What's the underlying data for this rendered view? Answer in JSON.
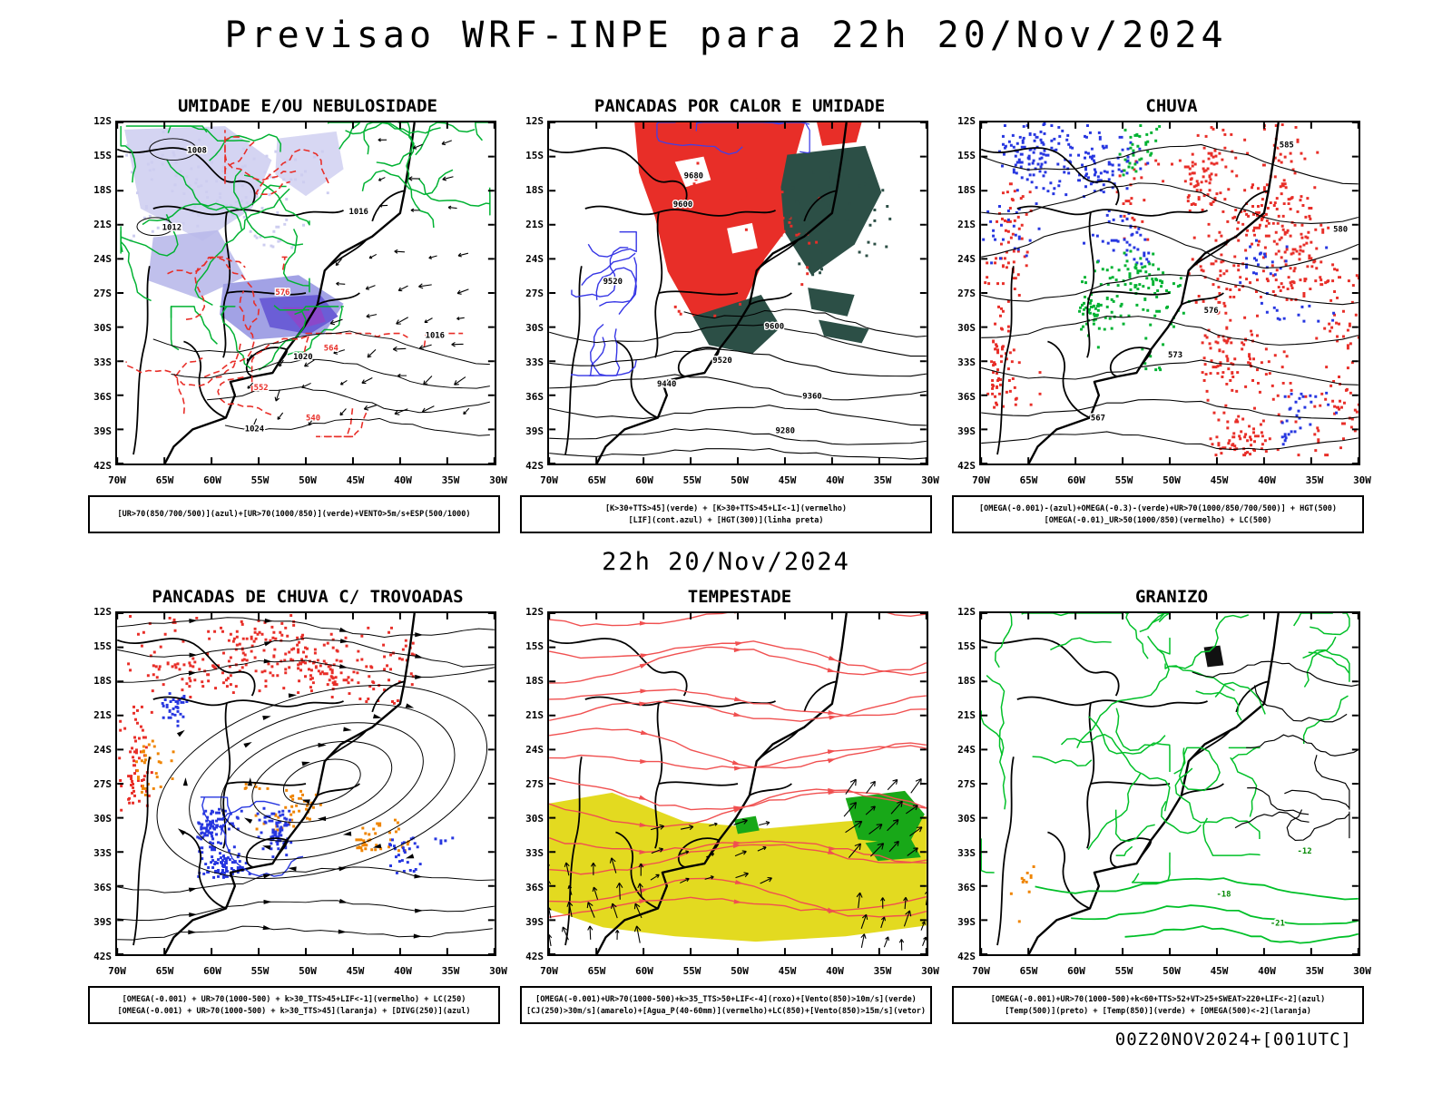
{
  "header": {
    "title": "Previsao WRF-INPE  para 22h 20/Nov/2024"
  },
  "time_label": "22h 20/Nov/2024",
  "footer_label": "00Z20NOV2024+[001UTC]",
  "axes": {
    "lat_ticks": [
      "12S",
      "15S",
      "18S",
      "21S",
      "24S",
      "27S",
      "30S",
      "33S",
      "36S",
      "39S",
      "42S"
    ],
    "lon_ticks": [
      "70W",
      "65W",
      "60W",
      "55W",
      "50W",
      "45W",
      "40W",
      "35W",
      "30W"
    ]
  },
  "colors": {
    "red": "#e82e28",
    "blue": "#2636e0",
    "green": "#00b232",
    "dark_green": "#2c4f46",
    "yellow": "#e3da20",
    "orange": "#ef8400",
    "lavender_light": "#cdcdf0",
    "lavender": "#9d9de4",
    "violet": "#6b5ed6",
    "purple": "#8f46c8",
    "stream_red": "#f05050",
    "contour_green": "#00c028"
  },
  "panels": [
    {
      "id": "umidade",
      "title": "UMIDADE E/OU NEBULOSIDADE",
      "captions": [
        "[UR>70(850/700/500)](azul)+[UR>70(1000/850)](verde)+VENTO>5m/s+ESP(500/1000)"
      ],
      "contour_labels": [
        "1008",
        "1012",
        "1016",
        "1016",
        "1020",
        "1024",
        "576",
        "564",
        "552",
        "540"
      ]
    },
    {
      "id": "pancadas-calor-umidade",
      "title": "PANCADAS POR CALOR E UMIDADE",
      "captions": [
        "[K>30+TTS>45](verde) + [K>30+TTS>45+LI<-1](vermelho)",
        "[LIF](cont.azul) + [HGT(300)](linha preta)"
      ],
      "contour_labels": [
        "9680",
        "9600",
        "9520",
        "9600",
        "9520",
        "9440",
        "9360",
        "9280"
      ]
    },
    {
      "id": "chuva",
      "title": "CHUVA",
      "captions": [
        "[OMEGA(-0.001)-(azul)+OMEGA(-0.3)-(verde)+UR>70(1000/850/700/500)] + HGT(500)",
        "[OMEGA(-0.01)_UR>50(1000/850)(vermelho) + LC(500)"
      ],
      "contour_labels": [
        "585",
        "580",
        "576",
        "573",
        "567"
      ]
    },
    {
      "id": "pancadas-chuva-trovoadas",
      "title": "PANCADAS DE CHUVA C/ TROVOADAS",
      "captions": [
        "[OMEGA(-0.001) + UR>70(1000-500) + k>30_TTS>45+LIF<-1](vermelho) + LC(250)",
        "[OMEGA(-0.001) + UR>70(1000-500) + k>30_TTS>45](laranja) + [DIVG(250)](azul)"
      ],
      "contour_labels": []
    },
    {
      "id": "tempestade",
      "title": "TEMPESTADE",
      "captions": [
        "[OMEGA(-0.001)+UR>70(1000-500)+k>35_TTS>50+LIF<-4](roxo)+[Vento(850)>10m/s](verde)",
        "[CJ(250)>30m/s](amarelo)+[Agua_P(40-60mm)](vermelho)+LC(850)+[Vento(850)>15m/s](vetor)"
      ],
      "contour_labels": []
    },
    {
      "id": "granizo",
      "title": "GRANIZO",
      "captions": [
        "[OMEGA(-0.001)+UR>70(1000-500)+k<60+TTS>52+VT>25+SWEAT>220+LIF<-2](azul)",
        "[Temp(500)](preto) + [Temp(850)](verde) + [OMEGA(500)<-2](laranja)"
      ],
      "contour_labels": [
        "-12",
        "-18",
        "-21"
      ]
    }
  ]
}
